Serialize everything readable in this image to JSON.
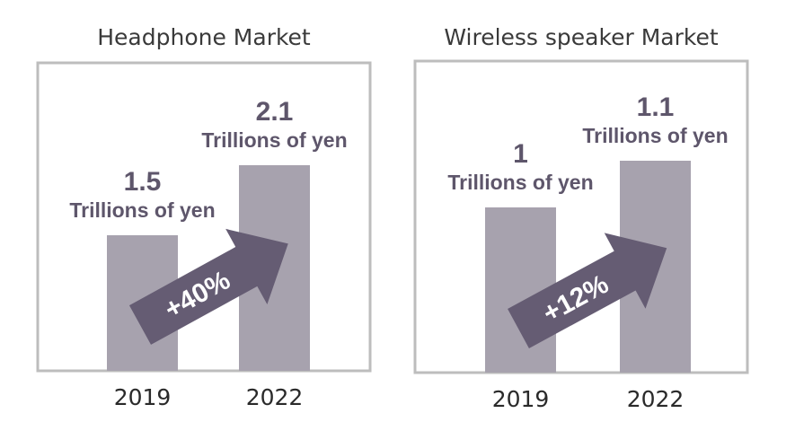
{
  "colors": {
    "bar": "#a7a2ae",
    "arrow": "#655c73",
    "text": "#5e566b",
    "frame": "#bdbdbd"
  },
  "chart_data": [
    {
      "type": "bar",
      "title": "Headphone Market",
      "categories": [
        "2019",
        "2022"
      ],
      "values": [
        1.5,
        2.1
      ],
      "value_labels": [
        "1.5",
        "2.1"
      ],
      "unit": "Trillions of yen",
      "annotation": "+40%"
    },
    {
      "type": "bar",
      "title": "Wireless speaker Market",
      "categories": [
        "2019",
        "2022"
      ],
      "values": [
        1,
        1.1
      ],
      "value_labels": [
        "1",
        "1.1"
      ],
      "unit": "Trillions of yen",
      "annotation": "+12%"
    }
  ]
}
